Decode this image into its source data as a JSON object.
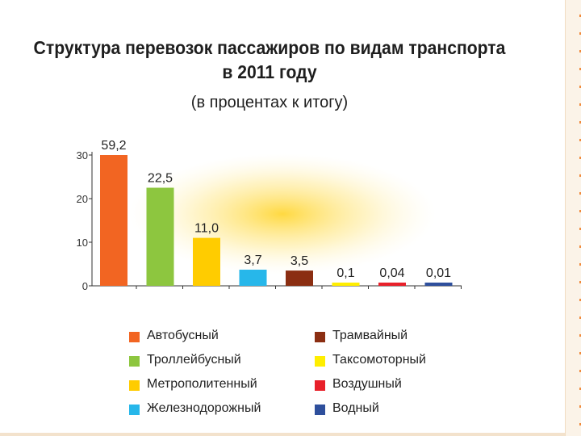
{
  "title_line1": "Структура перевозок пассажиров по видам транспорта",
  "title_line2": "в 2011 году",
  "subtitle": "(в процентах к итогу)",
  "chart_data": {
    "type": "bar",
    "categories": [
      "Автобусный",
      "Троллейбусный",
      "Метрополитенный",
      "Железнодорожный",
      "Трамвайный",
      "Таксомоторный",
      "Воздушный",
      "Водный"
    ],
    "values": [
      59.2,
      22.5,
      11.0,
      3.7,
      3.5,
      0.1,
      0.04,
      0.01
    ],
    "value_labels": [
      "59,2",
      "22,5",
      "11,0",
      "3,7",
      "3,5",
      "0,1",
      "0,04",
      "0,01"
    ],
    "colors": [
      "#f26522",
      "#8dc63f",
      "#ffcc00",
      "#27b7ea",
      "#8b2e12",
      "#ffee00",
      "#e8202a",
      "#2e4f9c"
    ],
    "yticks": [
      "0",
      "10",
      "20",
      "30"
    ],
    "ylim": [
      0,
      30
    ],
    "legend_position": "bottom",
    "grid": false
  },
  "legend_left": [
    "Автобусный",
    "Троллейбусный",
    "Метрополитенный",
    "Железнодорожный"
  ],
  "legend_right": [
    "Трамвайный",
    "Таксомоторный",
    "Воздушный",
    "Водный"
  ]
}
